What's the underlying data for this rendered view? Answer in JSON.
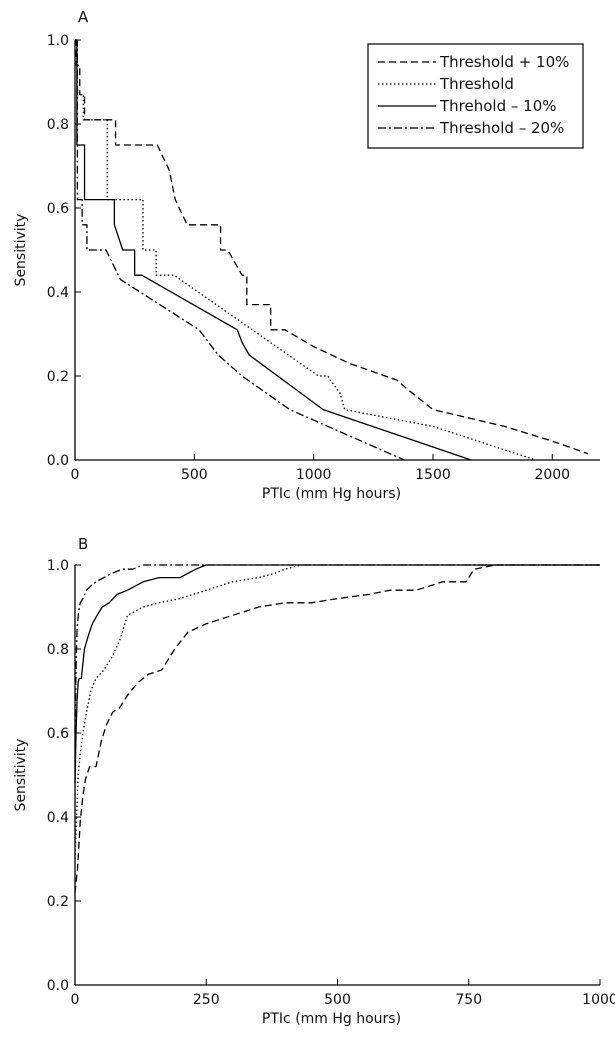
{
  "chart_data": [
    {
      "type": "line",
      "panel_label": "A",
      "xlabel": "PTIc (mm Hg hours)",
      "ylabel": "Sensitivity",
      "xlim": [
        0,
        2200
      ],
      "ylim": [
        0,
        1.0
      ],
      "xticks": [
        0,
        500,
        1000,
        1500,
        2000
      ],
      "yticks": [
        0.0,
        0.2,
        0.4,
        0.6,
        0.8,
        1.0
      ],
      "xtick_labels": [
        "0",
        "500",
        "1000",
        "1500",
        "2000"
      ],
      "ytick_labels": [
        "0.0",
        "0.2",
        "0.4",
        "0.6",
        "0.8",
        "1.0"
      ],
      "legend_position": "top-right",
      "series": [
        {
          "name": "Threshold + 10%",
          "style": "dashed",
          "x": [
            0,
            5,
            5,
            20,
            20,
            40,
            40,
            55,
            55,
            170,
            170,
            345,
            345,
            395,
            395,
            420,
            420,
            470,
            470,
            610,
            610,
            640,
            640,
            700,
            700,
            720,
            720,
            760,
            760,
            820,
            820,
            880,
            880,
            1000,
            1150,
            1350,
            1390,
            1500,
            1800,
            2000,
            2150
          ],
          "y": [
            1.0,
            1.0,
            0.94,
            0.94,
            0.87,
            0.87,
            0.81,
            0.81,
            0.81,
            0.81,
            0.75,
            0.75,
            0.75,
            0.69,
            0.69,
            0.62,
            0.62,
            0.56,
            0.56,
            0.56,
            0.5,
            0.5,
            0.5,
            0.44,
            0.44,
            0.44,
            0.37,
            0.37,
            0.37,
            0.37,
            0.31,
            0.31,
            0.31,
            0.27,
            0.23,
            0.19,
            0.17,
            0.12,
            0.08,
            0.045,
            0.015
          ]
        },
        {
          "name": "Threshold",
          "style": "dotted",
          "x": [
            0,
            10,
            10,
            35,
            35,
            135,
            135,
            285,
            285,
            340,
            340,
            415,
            1020,
            1060,
            1070,
            1110,
            1130,
            1500,
            1930
          ],
          "y": [
            1.0,
            1.0,
            0.87,
            0.87,
            0.81,
            0.81,
            0.62,
            0.62,
            0.5,
            0.5,
            0.44,
            0.44,
            0.2,
            0.2,
            0.19,
            0.16,
            0.12,
            0.08,
            0.0
          ],
          "comment": "reading of dotted step line"
        },
        {
          "name": "Threhold – 10%",
          "style": "solid",
          "x": [
            0,
            8,
            8,
            40,
            40,
            50,
            50,
            165,
            165,
            200,
            200,
            250,
            250,
            280,
            680,
            700,
            730,
            1040,
            1660
          ],
          "y": [
            1.0,
            1.0,
            0.75,
            0.75,
            0.62,
            0.62,
            0.62,
            0.62,
            0.56,
            0.5,
            0.5,
            0.5,
            0.44,
            0.44,
            0.31,
            0.28,
            0.25,
            0.12,
            0.0
          ]
        },
        {
          "name": "Threshold – 20%",
          "style": "dashdot",
          "x": [
            0,
            10,
            10,
            30,
            30,
            50,
            50,
            130,
            190,
            520,
            600,
            700,
            900,
            1380
          ],
          "y": [
            1.0,
            1.0,
            0.62,
            0.62,
            0.56,
            0.56,
            0.5,
            0.5,
            0.43,
            0.31,
            0.25,
            0.2,
            0.12,
            0.0
          ]
        }
      ]
    },
    {
      "type": "line",
      "panel_label": "B",
      "xlabel": "PTIc (mm Hg hours)",
      "ylabel": "Sensitivity",
      "xlim": [
        0,
        1000
      ],
      "ylim": [
        0,
        1.0
      ],
      "xticks": [
        0,
        250,
        500,
        750,
        1000
      ],
      "yticks": [
        0.0,
        0.2,
        0.4,
        0.6,
        0.8,
        1.0
      ],
      "xtick_labels": [
        "0",
        "250",
        "500",
        "750",
        "1000"
      ],
      "ytick_labels": [
        "0.0",
        "0.2",
        "0.4",
        "0.6",
        "0.8",
        "1.0"
      ],
      "series": [
        {
          "name": "Threshold + 10%",
          "style": "dashed",
          "x": [
            0,
            5,
            10,
            15,
            20,
            28,
            40,
            50,
            60,
            72,
            85,
            100,
            120,
            140,
            165,
            190,
            215,
            250,
            300,
            350,
            400,
            450,
            500,
            560,
            600,
            650,
            700,
            745,
            760,
            800,
            1000
          ],
          "y": [
            0.22,
            0.28,
            0.39,
            0.45,
            0.49,
            0.52,
            0.52,
            0.58,
            0.62,
            0.65,
            0.66,
            0.69,
            0.72,
            0.74,
            0.75,
            0.8,
            0.84,
            0.86,
            0.88,
            0.9,
            0.91,
            0.91,
            0.92,
            0.93,
            0.94,
            0.94,
            0.96,
            0.96,
            0.99,
            1.0,
            1.0
          ]
        },
        {
          "name": "Threshold",
          "style": "dotted",
          "x": [
            0,
            3,
            6,
            10,
            15,
            22,
            30,
            40,
            55,
            70,
            85,
            100,
            130,
            160,
            200,
            250,
            300,
            350,
            380,
            400,
            430,
            460,
            1000
          ],
          "y": [
            0.3,
            0.4,
            0.5,
            0.55,
            0.6,
            0.65,
            0.7,
            0.73,
            0.75,
            0.78,
            0.82,
            0.88,
            0.9,
            0.91,
            0.92,
            0.94,
            0.96,
            0.97,
            0.98,
            0.99,
            1.0,
            1.0,
            1.0
          ]
        },
        {
          "name": "Threhold – 10%",
          "style": "solid",
          "x": [
            0,
            2,
            4,
            6,
            8,
            12,
            18,
            25,
            33,
            42,
            52,
            65,
            80,
            100,
            130,
            160,
            200,
            230,
            250,
            1000
          ],
          "y": [
            0.48,
            0.6,
            0.68,
            0.72,
            0.73,
            0.73,
            0.8,
            0.83,
            0.86,
            0.88,
            0.9,
            0.91,
            0.93,
            0.94,
            0.96,
            0.97,
            0.97,
            0.99,
            1.0,
            1.0
          ]
        },
        {
          "name": "Threshold – 20%",
          "style": "dashdot",
          "x": [
            0,
            2,
            4,
            7,
            10,
            15,
            22,
            30,
            40,
            55,
            70,
            90,
            110,
            130,
            150,
            1000
          ],
          "y": [
            0.6,
            0.75,
            0.85,
            0.89,
            0.91,
            0.92,
            0.94,
            0.95,
            0.96,
            0.97,
            0.98,
            0.99,
            0.99,
            1.0,
            1.0,
            1.0
          ]
        }
      ]
    }
  ]
}
